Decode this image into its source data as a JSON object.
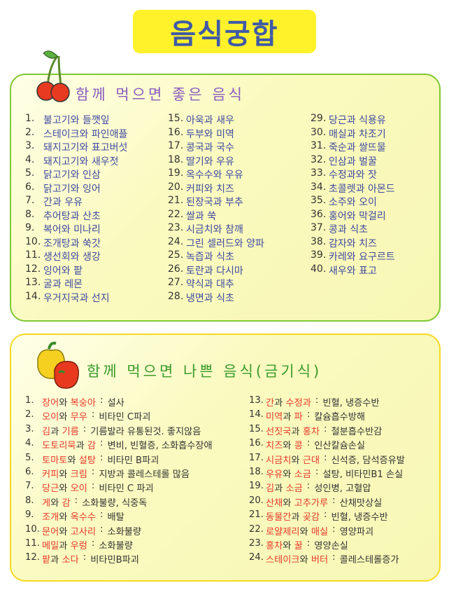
{
  "title": "음식궁합",
  "good_section": {
    "title": "함께 먹으면 좋은 음식",
    "items": [
      {
        "num": "1.",
        "text": "불고기와 들깻잎"
      },
      {
        "num": "2.",
        "text": "스테이크와 파인애플"
      },
      {
        "num": "3.",
        "text": "돼지고기와 표고버섯"
      },
      {
        "num": "4.",
        "text": "돼지고기와 새우젓"
      },
      {
        "num": "5.",
        "text": "닭고기와 인삼"
      },
      {
        "num": "6.",
        "text": "닭고기와 잉어"
      },
      {
        "num": "7.",
        "text": "간과 우유"
      },
      {
        "num": "8.",
        "text": "추어탕과 산초"
      },
      {
        "num": "9.",
        "text": "복어와 미나리"
      },
      {
        "num": "10.",
        "text": "조개탕과 쑥갓"
      },
      {
        "num": "11.",
        "text": "생선회와 생강"
      },
      {
        "num": "12.",
        "text": "잉어와 팥"
      },
      {
        "num": "13.",
        "text": "굴과 레몬"
      },
      {
        "num": "14.",
        "text": "우거지국과 선지"
      },
      {
        "num": "15.",
        "text": "아욱과 새우"
      },
      {
        "num": "16.",
        "text": "두부와 미역"
      },
      {
        "num": "17.",
        "text": "콩국과 국수"
      },
      {
        "num": "18.",
        "text": "딸기와 우유"
      },
      {
        "num": "19.",
        "text": "옥수수와 우유"
      },
      {
        "num": "20.",
        "text": "커피와 치즈"
      },
      {
        "num": "21.",
        "text": "된장국과 부추"
      },
      {
        "num": "22.",
        "text": "쌀과 쑥"
      },
      {
        "num": "23.",
        "text": "시금치와 참깨"
      },
      {
        "num": "24.",
        "text": "그린 셀러드와 양파"
      },
      {
        "num": "25.",
        "text": "녹즙과 식초"
      },
      {
        "num": "26.",
        "text": "토란과 다시마"
      },
      {
        "num": "27.",
        "text": "약식과 대추"
      },
      {
        "num": "28.",
        "text": "냉면과 식초"
      },
      {
        "num": "29.",
        "text": "당근과 식용유"
      },
      {
        "num": "30.",
        "text": "매실과 차조기"
      },
      {
        "num": "31.",
        "text": "죽순과 쌀뜨물"
      },
      {
        "num": "32.",
        "text": "인삼과 벌꿀"
      },
      {
        "num": "33.",
        "text": "수정과와 잣"
      },
      {
        "num": "34.",
        "text": "초콜렛과 아몬드"
      },
      {
        "num": "35.",
        "text": "소주와 오이"
      },
      {
        "num": "36.",
        "text": "홍어와 막걸리"
      },
      {
        "num": "37.",
        "text": "콩과 식초"
      },
      {
        "num": "38.",
        "text": "감자와 치즈"
      },
      {
        "num": "39.",
        "text": "카레와 요구르트"
      },
      {
        "num": "40.",
        "text": "새우와 표고"
      }
    ]
  },
  "bad_section": {
    "title": "함께 먹으면 나쁜 음식(금기식)",
    "items": [
      {
        "num": "1.",
        "a": "장어",
        "conj": "와",
        "b": "복숭아",
        "effect": "설사"
      },
      {
        "num": "2.",
        "a": "오이",
        "conj": "와",
        "b": "무우",
        "effect": "비타민 C파괴"
      },
      {
        "num": "3.",
        "a": "김",
        "conj": "과",
        "b": "기름",
        "effect": "기름발라 유통된것. 좋지않음"
      },
      {
        "num": "4.",
        "a": "도토리묵",
        "conj": "과",
        "b": "감",
        "effect": "변비, 빈혈증, 소화흡수장애"
      },
      {
        "num": "5.",
        "a": "토마토",
        "conj": "와",
        "b": "설탕",
        "effect": "비타민 B파괴"
      },
      {
        "num": "6.",
        "a": "커피",
        "conj": "와",
        "b": "크림",
        "effect": "지방과 콜레스테롤 많음"
      },
      {
        "num": "7.",
        "a": "당근",
        "conj": "와",
        "b": "오이",
        "effect": "비타민 C 파괴"
      },
      {
        "num": "8.",
        "a": "게",
        "conj": "와",
        "b": "감",
        "effect": "소화불량, 식중독"
      },
      {
        "num": "9.",
        "a": "조개",
        "conj": "와",
        "b": "옥수수",
        "effect": "배탈"
      },
      {
        "num": "10.",
        "a": "문어",
        "conj": "와",
        "b": "고사리",
        "effect": "소화불량"
      },
      {
        "num": "11.",
        "a": "메밀",
        "conj": "과",
        "b": "우렁",
        "effect": "소화불량"
      },
      {
        "num": "12.",
        "a": "팥",
        "conj": "과",
        "b": "소다",
        "effect": "비타민B파괴"
      },
      {
        "num": "13.",
        "a": "간",
        "conj": "과",
        "b": "수정과",
        "effect": "빈혈, 냉증수반"
      },
      {
        "num": "14.",
        "a": "미역",
        "conj": "과",
        "b": "파",
        "effect": "칼슘흡수방해"
      },
      {
        "num": "15.",
        "a": "선짓국",
        "conj": "과",
        "b": "홍차",
        "effect": "철분흡수반감"
      },
      {
        "num": "16.",
        "a": "치즈",
        "conj": "와",
        "b": "콩",
        "effect": "인산칼슘손실"
      },
      {
        "num": "17.",
        "a": "시금치",
        "conj": "와",
        "b": "근대",
        "effect": "신석증, 담석증유발"
      },
      {
        "num": "18.",
        "a": "우유",
        "conj": "와",
        "b": "소금",
        "effect": "설탕, 비타민B1 손실"
      },
      {
        "num": "19.",
        "a": "김",
        "conj": "과",
        "b": "소금",
        "effect": "성인병, 고혈압"
      },
      {
        "num": "20.",
        "a": "산채",
        "conj": "와",
        "b": "고추가루",
        "effect": "산채맛상실"
      },
      {
        "num": "21.",
        "a": "동물간",
        "conj": "과",
        "b": "곶감",
        "effect": "빈혈, 냉증수반"
      },
      {
        "num": "22.",
        "a": "로얄제리",
        "conj": "와",
        "b": "매실",
        "effect": "영양파괴"
      },
      {
        "num": "23.",
        "a": "홍차",
        "conj": "와",
        "b": "꿀",
        "effect": "영양손실"
      },
      {
        "num": "24.",
        "a": "스테이크",
        "conj": "와",
        "b": "버터",
        "effect": "콜레스테롤증가"
      }
    ]
  },
  "colors": {
    "title_bg": "#fff22a",
    "title_text": "#3f5aa8",
    "good_border": "#7dc832",
    "bad_border": "#f5d820",
    "good_text": "#3f4aa0",
    "bad_food": "#e8392a"
  }
}
